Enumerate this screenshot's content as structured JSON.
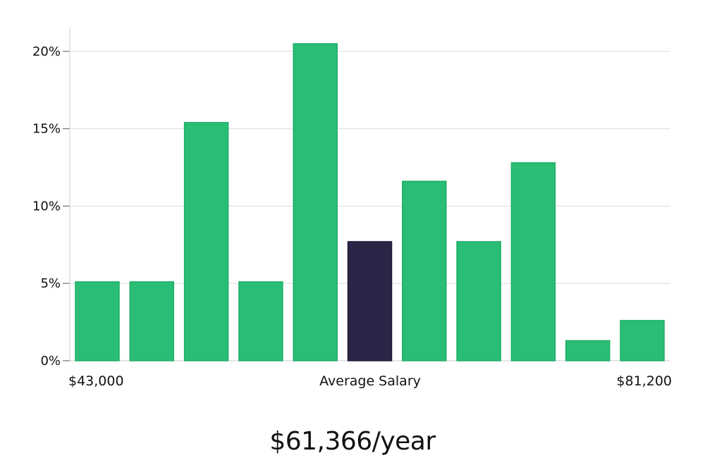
{
  "chart_data": {
    "type": "bar",
    "title": "",
    "xlabel": "Average Salary",
    "ylabel": "",
    "x_min_label": "$43,000",
    "x_max_label": "$81,200",
    "ylim": [
      0,
      21.5
    ],
    "yticks": [
      0,
      5,
      10,
      15,
      20
    ],
    "ytick_labels": [
      "0%",
      "5%",
      "10%",
      "15%",
      "20%"
    ],
    "values": [
      5.1,
      5.1,
      15.4,
      5.1,
      20.5,
      7.7,
      11.6,
      7.7,
      12.8,
      1.3,
      2.6
    ],
    "highlight_index": 5,
    "colors": {
      "bar": "#29bd76",
      "bar_stroke": "#1fae68",
      "highlight": "#292648",
      "grid": "#dcdcdc",
      "axis": "#cccccc"
    },
    "grid": true
  },
  "summary": {
    "average_salary": "$61,366/year"
  }
}
